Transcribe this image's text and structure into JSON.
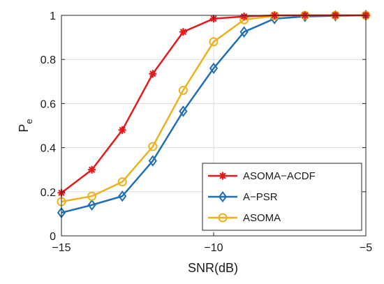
{
  "chart_data": {
    "type": "line",
    "title": "",
    "xlabel": "SNR(dB)",
    "ylabel": {
      "main": "P",
      "subscript": "e"
    },
    "xlim": [
      -15,
      -5
    ],
    "ylim": [
      0,
      1
    ],
    "xticks": [
      -15,
      -10,
      -5
    ],
    "xtick_labels": [
      "−15",
      "−10",
      "−5"
    ],
    "yticks": [
      0,
      0.2,
      0.4,
      0.6,
      0.8,
      1
    ],
    "ytick_labels": [
      "0",
      "0.2",
      "0.4",
      "0.6",
      "0.8",
      "1"
    ],
    "grid": true,
    "legend": "bottom-right",
    "x": [
      -15,
      -14,
      -13,
      -12,
      -11,
      -10,
      -9,
      -8,
      -7,
      -6,
      -5
    ],
    "series": [
      {
        "name": "ASOMA−ACDF",
        "color": "#e41a1c",
        "marker": "asterisk",
        "values": [
          0.195,
          0.3,
          0.48,
          0.735,
          0.925,
          0.985,
          0.995,
          1.0,
          1.0,
          1.0,
          1.0
        ]
      },
      {
        "name": "A−PSR",
        "color": "#1f6fb5",
        "marker": "diamond",
        "values": [
          0.105,
          0.14,
          0.18,
          0.34,
          0.565,
          0.76,
          0.925,
          0.985,
          0.995,
          0.998,
          1.0
        ]
      },
      {
        "name": "ASOMA",
        "color": "#edb120",
        "marker": "circle",
        "values": [
          0.155,
          0.18,
          0.245,
          0.405,
          0.66,
          0.88,
          0.98,
          0.998,
          1.0,
          1.0,
          1.0
        ]
      }
    ]
  }
}
